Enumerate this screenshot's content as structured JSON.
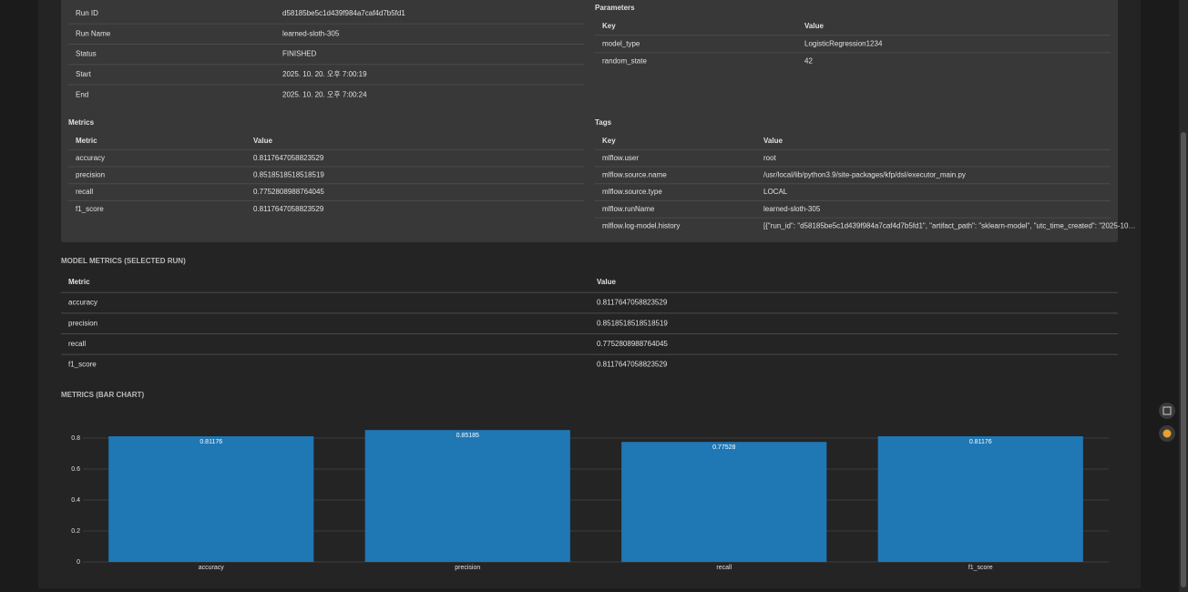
{
  "run_info": {
    "rows": [
      [
        "Run ID",
        "d58185be5c1d439f984a7caf4d7b5fd1"
      ],
      [
        "Run Name",
        "learned-sloth-305"
      ],
      [
        "Status",
        "FINISHED"
      ],
      [
        "Start",
        "2025. 10. 20. 오후 7:00:19"
      ],
      [
        "End",
        "2025. 10. 20. 오후 7:00:24"
      ]
    ]
  },
  "parameters": {
    "title": "Parameters",
    "header": [
      "Key",
      "Value"
    ],
    "rows": [
      [
        "model_type",
        "LogisticRegression1234"
      ],
      [
        "random_state",
        "42"
      ]
    ]
  },
  "metrics": {
    "title": "Metrics",
    "header": [
      "Metric",
      "Value"
    ],
    "rows": [
      [
        "accuracy",
        "0.8117647058823529"
      ],
      [
        "precision",
        "0.8518518518518519"
      ],
      [
        "recall",
        "0.7752808988764045"
      ],
      [
        "f1_score",
        "0.8117647058823529"
      ]
    ]
  },
  "tags": {
    "title": "Tags",
    "header": [
      "Key",
      "Value"
    ],
    "rows": [
      [
        "mlflow.user",
        "root"
      ],
      [
        "mlflow.source.name",
        "/usr/local/lib/python3.9/site-packages/kfp/dsl/executor_main.py"
      ],
      [
        "mlflow.source.type",
        "LOCAL"
      ],
      [
        "mlflow.runName",
        "learned-sloth-305"
      ],
      [
        "mlflow.log-model.history",
        "[{\"run_id\": \"d58185be5c1d439f984a7caf4d7b5fd1\", \"artifact_path\": \"sklearn-model\", \"utc_time_created\": \"2025-10…"
      ]
    ]
  },
  "model_metrics": {
    "title": "MODEL METRICS (SELECTED RUN)",
    "header": [
      "Metric",
      "Value"
    ],
    "rows": [
      [
        "accuracy",
        "0.8117647058823529"
      ],
      [
        "precision",
        "0.8518518518518519"
      ],
      [
        "recall",
        "0.7752808988764045"
      ],
      [
        "f1_score",
        "0.8117647058823529"
      ]
    ]
  },
  "chart_data": {
    "type": "bar",
    "title": "METRICS (BAR CHART)",
    "categories": [
      "accuracy",
      "precision",
      "recall",
      "f1_score"
    ],
    "values": [
      0.8117647058823529,
      0.8518518518518519,
      0.7752808988764045,
      0.8117647058823529
    ],
    "value_labels": [
      "0.81176",
      "0.85185",
      "0.77528",
      "0.81176"
    ],
    "ylim": [
      0,
      0.9
    ],
    "yticks": [
      0,
      0.2,
      0.4,
      0.6,
      0.8
    ],
    "color": "#1f77b4",
    "grid": true
  }
}
